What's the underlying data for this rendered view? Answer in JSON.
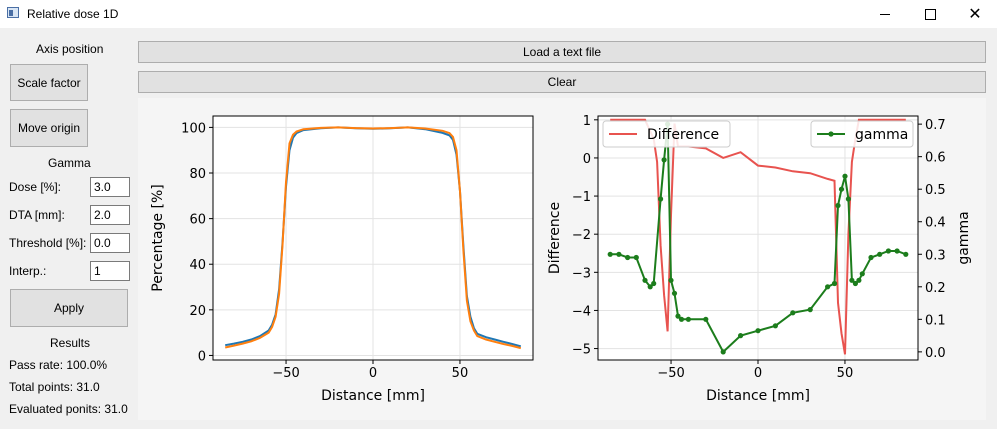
{
  "window": {
    "title": "Relative dose 1D"
  },
  "sidebar": {
    "axis_heading": "Axis position",
    "scale_factor_label": "Scale factor",
    "move_origin_label": "Move origin",
    "gamma_heading": "Gamma",
    "fields": [
      {
        "label": "Dose [%]:",
        "value": "3.0"
      },
      {
        "label": "DTA [mm]:",
        "value": "2.0"
      },
      {
        "label": "Threshold [%]:",
        "value": "0.0"
      },
      {
        "label": "Interp.:",
        "value": "1"
      }
    ],
    "apply_label": "Apply",
    "results_heading": "Results",
    "pass_rate": "Pass rate: 100.0%",
    "total_points": "Total points: 31.0",
    "evaluated_points": "Evaluated ponits: 31.0"
  },
  "toolbar": {
    "load_label": "Load a text file",
    "clear_label": "Clear"
  },
  "chart_data": [
    {
      "type": "line",
      "title": "",
      "xlabel": "Distance [mm]",
      "ylabel": "Percentage [%]",
      "xlim": [
        -92,
        92
      ],
      "ylim": [
        -2,
        105
      ],
      "xticks": [
        -50,
        0,
        50
      ],
      "yticks": [
        0,
        20,
        40,
        60,
        80,
        100
      ],
      "grid": true,
      "colors": [
        "#1f77b4",
        "#ff7f0e"
      ],
      "series": [
        {
          "x": [
            -85,
            -80,
            -75,
            -70,
            -65,
            -60,
            -58,
            -56,
            -54,
            -52,
            -50,
            -48,
            -46,
            -44,
            -40,
            -30,
            -20,
            -10,
            0,
            10,
            20,
            30,
            40,
            44,
            46,
            48,
            50,
            52,
            54,
            56,
            58,
            60,
            65,
            70,
            75,
            80,
            85
          ],
          "y": [
            4.5,
            5.2,
            6,
            7,
            8.5,
            11,
            13.5,
            18,
            29,
            50,
            74,
            90,
            95.5,
            97.5,
            98.8,
            99.6,
            100,
            99.6,
            99.4,
            99.6,
            100,
            99.2,
            97.6,
            96.5,
            94.5,
            88,
            72,
            48,
            26,
            17,
            12,
            9.5,
            8,
            7,
            6,
            5,
            4
          ]
        },
        {
          "x": [
            -85,
            -80,
            -75,
            -70,
            -65,
            -60,
            -58,
            -56,
            -54,
            -52,
            -50,
            -48,
            -46,
            -44,
            -40,
            -30,
            -20,
            -10,
            0,
            10,
            20,
            30,
            40,
            44,
            46,
            48,
            50,
            52,
            54,
            56,
            58,
            60,
            65,
            70,
            75,
            80,
            85
          ],
          "y": [
            3.5,
            4.3,
            5.2,
            6.2,
            7.7,
            10,
            12.5,
            17,
            27,
            49,
            76,
            93,
            96.8,
            98.2,
            99.2,
            99.8,
            100,
            99.7,
            99.5,
            99.7,
            100,
            99.5,
            98.5,
            97.5,
            95.8,
            90,
            72,
            46,
            24,
            15,
            11,
            8.5,
            7,
            6,
            5,
            4.2,
            3.2
          ]
        }
      ]
    },
    {
      "type": "line",
      "title": "",
      "xlabel": "Distance [mm]",
      "ylabel": "Difference",
      "y2label": "gamma",
      "xlim": [
        -92,
        92
      ],
      "ylim": [
        -5.3,
        1.1
      ],
      "y2lim": [
        -0.025,
        0.725
      ],
      "xticks": [
        -50,
        0,
        50
      ],
      "yticks": [
        1,
        0,
        -1,
        -2,
        -3,
        -4,
        -5
      ],
      "y2ticks": [
        0.0,
        0.1,
        0.2,
        0.3,
        0.4,
        0.5,
        0.6,
        0.7
      ],
      "grid": true,
      "legend": [
        {
          "position": "top-left",
          "label": "Difference"
        },
        {
          "position": "top-right",
          "label": "gamma"
        }
      ],
      "series": [
        {
          "name": "Difference",
          "axis": "left",
          "color": "#e8534f",
          "marker": false,
          "x": [
            -85,
            -80,
            -75,
            -70,
            -65,
            -60,
            -58,
            -56,
            -54,
            -52,
            -50,
            -48,
            -46,
            -44,
            -40,
            -30,
            -20,
            -10,
            0,
            10,
            20,
            30,
            40,
            44,
            46,
            48,
            50,
            52,
            54,
            56,
            58,
            60,
            65,
            70,
            75,
            80,
            85
          ],
          "y": [
            1.0,
            1.0,
            1.0,
            1.0,
            1.0,
            0.5,
            -0.1,
            -2.3,
            -3.6,
            -4.55,
            -1.5,
            0.9,
            0.3,
            0.3,
            0.3,
            0.25,
            0.0,
            0.15,
            -0.2,
            -0.25,
            -0.35,
            -0.4,
            -0.55,
            -0.6,
            -3.8,
            -4.6,
            -5.15,
            -2.0,
            -0.1,
            0.5,
            1.0,
            1.0,
            1.0,
            1.0,
            1.0,
            1.0,
            1.0
          ]
        },
        {
          "name": "gamma",
          "axis": "right",
          "color": "#1c7d1c",
          "marker": true,
          "x": [
            -85,
            -80,
            -75,
            -70,
            -65,
            -62,
            -60,
            -56,
            -54,
            -52,
            -50,
            -48,
            -46,
            -44,
            -40,
            -30,
            -20,
            -10,
            0,
            10,
            20,
            30,
            40,
            44,
            46,
            48,
            50,
            52,
            54,
            56,
            58,
            60,
            65,
            70,
            75,
            80,
            85
          ],
          "y": [
            0.3,
            0.3,
            0.29,
            0.29,
            0.22,
            0.2,
            0.21,
            0.47,
            0.59,
            0.7,
            0.22,
            0.18,
            0.11,
            0.1,
            0.1,
            0.1,
            0.0,
            0.05,
            0.065,
            0.08,
            0.12,
            0.13,
            0.2,
            0.21,
            0.45,
            0.5,
            0.54,
            0.47,
            0.22,
            0.21,
            0.22,
            0.24,
            0.29,
            0.3,
            0.31,
            0.31,
            0.3
          ]
        }
      ]
    }
  ]
}
